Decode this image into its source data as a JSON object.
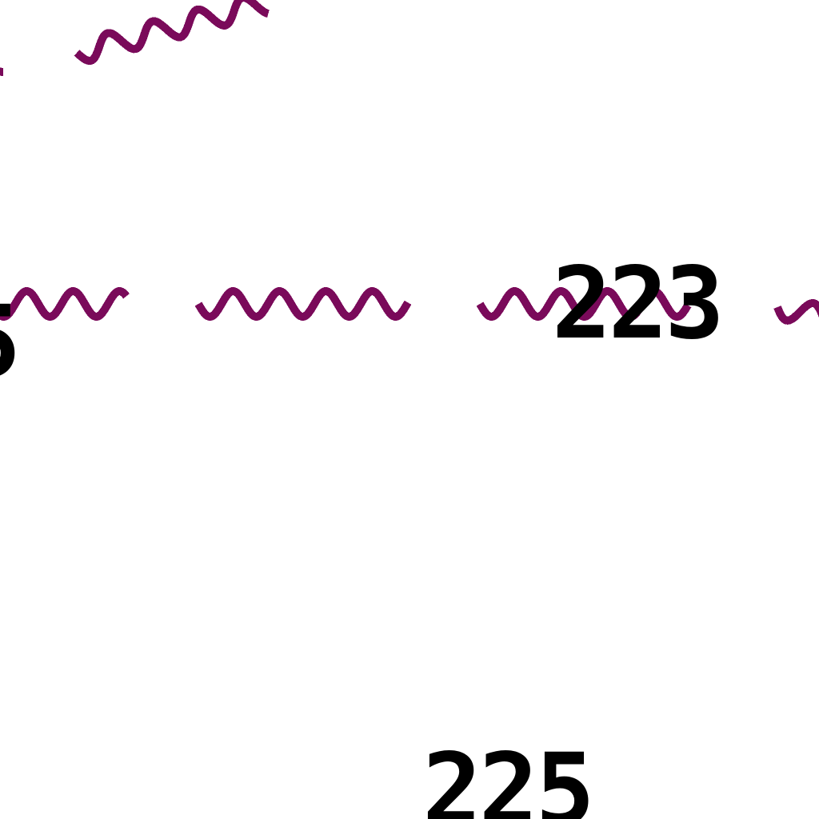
{
  "map": {
    "background": "#ffffff",
    "feature_color": "#7a0a5a",
    "label_color": "#000000",
    "feature_type": "wavy-line boundary",
    "labels": {
      "label_223": "223",
      "label_225": "225",
      "label_edge": "5"
    }
  }
}
